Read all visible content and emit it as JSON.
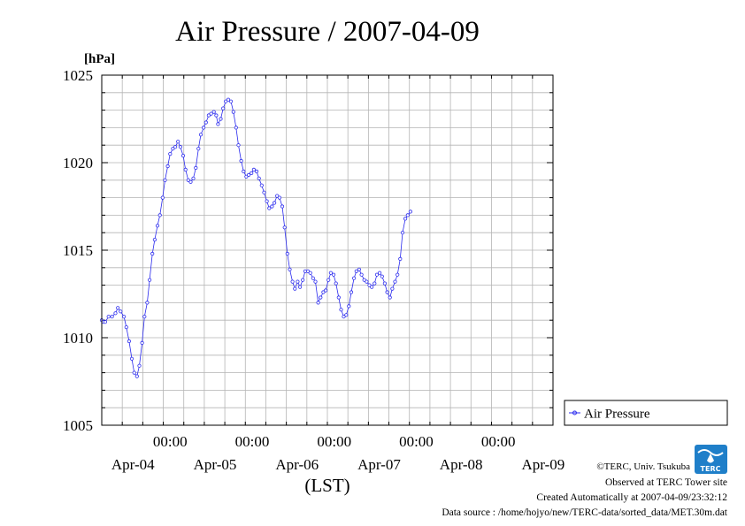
{
  "chart_data": {
    "type": "line",
    "title": "Air Pressure / 2007-04-09",
    "ylabel": "[hPa]",
    "xlabel": "(LST)",
    "ylim": [
      1005,
      1025
    ],
    "yticks": [
      1005,
      1010,
      1015,
      1020,
      1025
    ],
    "x_unit": "hours from 2007-04-03 00:00 LST",
    "xlim": [
      12,
      144
    ],
    "xticks": [
      {
        "x": 32,
        "time": "00:00",
        "date": "Apr-04"
      },
      {
        "x": 56,
        "time": "00:00",
        "date": "Apr-05"
      },
      {
        "x": 80,
        "time": "00:00",
        "date": "Apr-06"
      },
      {
        "x": 104,
        "time": "00:00",
        "date": "Apr-07"
      },
      {
        "x": 128,
        "time": "00:00",
        "date": "Apr-08"
      },
      {
        "x": 152,
        "time": "",
        "date": "Apr-09"
      }
    ],
    "grid": true,
    "legend": "right",
    "series": [
      {
        "name": "Air Pressure",
        "color": "#2a2aee",
        "marker": "circle",
        "points": [
          [
            12.0,
            1011.0
          ],
          [
            12.5,
            1010.9
          ],
          [
            13.0,
            1010.9
          ],
          [
            14.0,
            1011.2
          ],
          [
            15.0,
            1011.2
          ],
          [
            16.0,
            1011.4
          ],
          [
            16.7,
            1011.7
          ],
          [
            17.5,
            1011.5
          ],
          [
            18.5,
            1011.2
          ],
          [
            19.2,
            1010.6
          ],
          [
            20.0,
            1009.8
          ],
          [
            20.8,
            1008.8
          ],
          [
            21.5,
            1008.0
          ],
          [
            22.3,
            1007.8
          ],
          [
            23.0,
            1008.4
          ],
          [
            23.8,
            1009.7
          ],
          [
            24.5,
            1011.2
          ],
          [
            25.3,
            1012.0
          ],
          [
            26.0,
            1013.3
          ],
          [
            26.8,
            1014.8
          ],
          [
            27.5,
            1015.6
          ],
          [
            28.3,
            1016.4
          ],
          [
            29.0,
            1017.0
          ],
          [
            29.8,
            1018.0
          ],
          [
            30.5,
            1019.0
          ],
          [
            31.3,
            1019.8
          ],
          [
            32.0,
            1020.5
          ],
          [
            32.8,
            1020.8
          ],
          [
            33.5,
            1020.9
          ],
          [
            34.3,
            1021.2
          ],
          [
            35.0,
            1020.9
          ],
          [
            35.8,
            1020.4
          ],
          [
            36.5,
            1019.6
          ],
          [
            37.3,
            1019.0
          ],
          [
            38.0,
            1018.9
          ],
          [
            38.8,
            1019.1
          ],
          [
            39.5,
            1019.7
          ],
          [
            40.3,
            1020.8
          ],
          [
            41.0,
            1021.6
          ],
          [
            41.8,
            1022.0
          ],
          [
            42.5,
            1022.3
          ],
          [
            43.3,
            1022.7
          ],
          [
            44.0,
            1022.8
          ],
          [
            44.8,
            1022.9
          ],
          [
            45.5,
            1022.7
          ],
          [
            46.0,
            1022.2
          ],
          [
            46.8,
            1022.5
          ],
          [
            47.5,
            1023.1
          ],
          [
            48.3,
            1023.5
          ],
          [
            49.0,
            1023.6
          ],
          [
            49.8,
            1023.5
          ],
          [
            50.5,
            1022.9
          ],
          [
            51.3,
            1022.0
          ],
          [
            52.0,
            1021.0
          ],
          [
            52.8,
            1020.1
          ],
          [
            53.5,
            1019.5
          ],
          [
            54.3,
            1019.2
          ],
          [
            55.0,
            1019.3
          ],
          [
            55.8,
            1019.4
          ],
          [
            56.5,
            1019.6
          ],
          [
            57.3,
            1019.5
          ],
          [
            58.0,
            1019.1
          ],
          [
            58.8,
            1018.7
          ],
          [
            59.5,
            1018.3
          ],
          [
            60.3,
            1017.8
          ],
          [
            61.0,
            1017.4
          ],
          [
            61.8,
            1017.5
          ],
          [
            62.5,
            1017.7
          ],
          [
            63.3,
            1018.1
          ],
          [
            64.0,
            1018.0
          ],
          [
            64.8,
            1017.5
          ],
          [
            65.5,
            1016.3
          ],
          [
            66.3,
            1014.8
          ],
          [
            67.0,
            1013.9
          ],
          [
            67.8,
            1013.2
          ],
          [
            68.5,
            1012.8
          ],
          [
            69.3,
            1013.2
          ],
          [
            70.0,
            1012.9
          ],
          [
            70.8,
            1013.3
          ],
          [
            71.5,
            1013.8
          ],
          [
            72.3,
            1013.8
          ],
          [
            73.0,
            1013.7
          ],
          [
            73.8,
            1013.4
          ],
          [
            74.5,
            1013.2
          ],
          [
            75.3,
            1012.0
          ],
          [
            76.0,
            1012.3
          ],
          [
            76.8,
            1012.6
          ],
          [
            77.5,
            1012.7
          ],
          [
            78.3,
            1013.3
          ],
          [
            79.0,
            1013.7
          ],
          [
            79.8,
            1013.6
          ],
          [
            80.5,
            1013.1
          ],
          [
            81.3,
            1012.3
          ],
          [
            82.0,
            1011.6
          ],
          [
            82.8,
            1011.2
          ],
          [
            83.5,
            1011.3
          ],
          [
            84.3,
            1011.8
          ],
          [
            85.0,
            1012.6
          ],
          [
            85.8,
            1013.4
          ],
          [
            86.5,
            1013.8
          ],
          [
            87.3,
            1013.9
          ],
          [
            88.0,
            1013.6
          ],
          [
            88.8,
            1013.3
          ],
          [
            89.5,
            1013.2
          ],
          [
            90.3,
            1013.0
          ],
          [
            91.0,
            1012.9
          ],
          [
            91.8,
            1013.1
          ],
          [
            92.5,
            1013.6
          ],
          [
            93.3,
            1013.7
          ],
          [
            94.0,
            1013.5
          ],
          [
            94.8,
            1013.1
          ],
          [
            95.5,
            1012.6
          ],
          [
            96.3,
            1012.3
          ],
          [
            97.0,
            1012.8
          ],
          [
            97.8,
            1013.2
          ],
          [
            98.5,
            1013.6
          ],
          [
            99.3,
            1014.5
          ],
          [
            100.0,
            1016.0
          ],
          [
            100.8,
            1016.8
          ],
          [
            101.5,
            1017.0
          ],
          [
            102.3,
            1017.2
          ]
        ]
      }
    ],
    "legend_label": "Air Pressure"
  },
  "credits": {
    "copyright": "©TERC, Univ. Tsukuba",
    "observed": "Observed at TERC Tower site",
    "created": "Created Automatically at 2007-04-09/23:32:12",
    "source": "Data source : /home/hojyo/new/TERC-data/sorted_data/MET.30m.dat"
  },
  "logo": {
    "text": "TERC",
    "color": "#1f7fc9"
  }
}
